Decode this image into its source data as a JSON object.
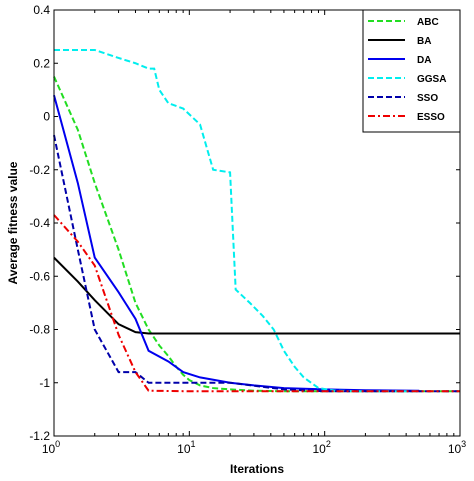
{
  "chart_data": {
    "type": "line",
    "title": "",
    "xlabel": "Iterations",
    "ylabel": "Average fitness value",
    "xscale": "log",
    "xlim": [
      1,
      1000
    ],
    "ylim": [
      -1.2,
      0.4
    ],
    "grid": false,
    "legend_placement": "top-right",
    "x_ticks": [
      {
        "value": 1,
        "base": "10",
        "exp": "0"
      },
      {
        "value": 10,
        "base": "10",
        "exp": "1"
      },
      {
        "value": 100,
        "base": "10",
        "exp": "2"
      },
      {
        "value": 1000,
        "base": "10",
        "exp": "3"
      }
    ],
    "y_ticks": [
      {
        "value": 0.4,
        "label": "0.4"
      },
      {
        "value": 0.2,
        "label": "0.2"
      },
      {
        "value": 0,
        "label": "0"
      },
      {
        "value": -0.2,
        "label": "-0.2"
      },
      {
        "value": -0.4,
        "label": "-0.4"
      },
      {
        "value": -0.6,
        "label": "-0.6"
      },
      {
        "value": -0.8,
        "label": "-0.8"
      },
      {
        "value": -1,
        "label": "-1"
      },
      {
        "value": -1.2,
        "label": "-1.2"
      }
    ],
    "series": [
      {
        "name": "ABC",
        "color": "#22dd22",
        "dash": "dashed",
        "points": [
          [
            1,
            0.15
          ],
          [
            1.5,
            -0.05
          ],
          [
            2,
            -0.25
          ],
          [
            3,
            -0.5
          ],
          [
            4,
            -0.7
          ],
          [
            5,
            -0.8
          ],
          [
            6,
            -0.86
          ],
          [
            7,
            -0.9
          ],
          [
            8,
            -0.94
          ],
          [
            9,
            -0.97
          ],
          [
            10,
            -0.99
          ],
          [
            12,
            -1.01
          ],
          [
            15,
            -1.02
          ],
          [
            20,
            -1.025
          ],
          [
            30,
            -1.03
          ],
          [
            50,
            -1.032
          ],
          [
            100,
            -1.032
          ],
          [
            200,
            -1.032
          ],
          [
            500,
            -1.032
          ],
          [
            1000,
            -1.032
          ]
        ]
      },
      {
        "name": "BA",
        "color": "#000000",
        "dash": "solid",
        "points": [
          [
            1,
            -0.53
          ],
          [
            1.5,
            -0.62
          ],
          [
            2,
            -0.69
          ],
          [
            3,
            -0.78
          ],
          [
            4,
            -0.81
          ],
          [
            5,
            -0.815
          ],
          [
            10,
            -0.815
          ],
          [
            100,
            -0.815
          ],
          [
            1000,
            -0.815
          ]
        ]
      },
      {
        "name": "DA",
        "color": "#0000ee",
        "dash": "solid",
        "points": [
          [
            1,
            0.08
          ],
          [
            1.5,
            -0.25
          ],
          [
            2,
            -0.53
          ],
          [
            3,
            -0.66
          ],
          [
            4,
            -0.76
          ],
          [
            5,
            -0.88
          ],
          [
            7,
            -0.92
          ],
          [
            9,
            -0.96
          ],
          [
            12,
            -0.98
          ],
          [
            20,
            -1.0
          ],
          [
            30,
            -1.01
          ],
          [
            50,
            -1.02
          ],
          [
            100,
            -1.025
          ],
          [
            200,
            -1.028
          ],
          [
            500,
            -1.03
          ]
        ]
      },
      {
        "name": "GGSA",
        "color": "#00eeee",
        "dash": "dashed",
        "points": [
          [
            1,
            0.25
          ],
          [
            2,
            0.25
          ],
          [
            3,
            0.22
          ],
          [
            4,
            0.2
          ],
          [
            5,
            0.18
          ],
          [
            5.5,
            0.18
          ],
          [
            6,
            0.1
          ],
          [
            7,
            0.05
          ],
          [
            9,
            0.03
          ],
          [
            12,
            -0.03
          ],
          [
            15,
            -0.2
          ],
          [
            20,
            -0.21
          ],
          [
            22,
            -0.65
          ],
          [
            28,
            -0.7
          ],
          [
            35,
            -0.75
          ],
          [
            42,
            -0.8
          ],
          [
            50,
            -0.88
          ],
          [
            60,
            -0.94
          ],
          [
            70,
            -0.98
          ],
          [
            90,
            -1.02
          ],
          [
            120,
            -1.03
          ],
          [
            200,
            -1.032
          ],
          [
            500,
            -1.032
          ]
        ]
      },
      {
        "name": "SSO",
        "color": "#0000aa",
        "dash": "dashed",
        "points": [
          [
            1,
            -0.07
          ],
          [
            1.5,
            -0.5
          ],
          [
            2,
            -0.8
          ],
          [
            3,
            -0.96
          ],
          [
            4,
            -0.96
          ],
          [
            5,
            -1.0
          ],
          [
            10,
            -1.0
          ],
          [
            20,
            -1.0
          ],
          [
            50,
            -1.025
          ],
          [
            100,
            -1.032
          ],
          [
            200,
            -1.032
          ],
          [
            500,
            -1.032
          ],
          [
            1000,
            -1.032
          ]
        ]
      },
      {
        "name": "ESSO",
        "color": "#ee0000",
        "dash": "dashdot",
        "points": [
          [
            1,
            -0.37
          ],
          [
            1.5,
            -0.47
          ],
          [
            2,
            -0.56
          ],
          [
            3,
            -0.82
          ],
          [
            4,
            -0.96
          ],
          [
            5,
            -1.03
          ],
          [
            10,
            -1.032
          ],
          [
            100,
            -1.032
          ],
          [
            1000,
            -1.032
          ]
        ]
      }
    ]
  }
}
